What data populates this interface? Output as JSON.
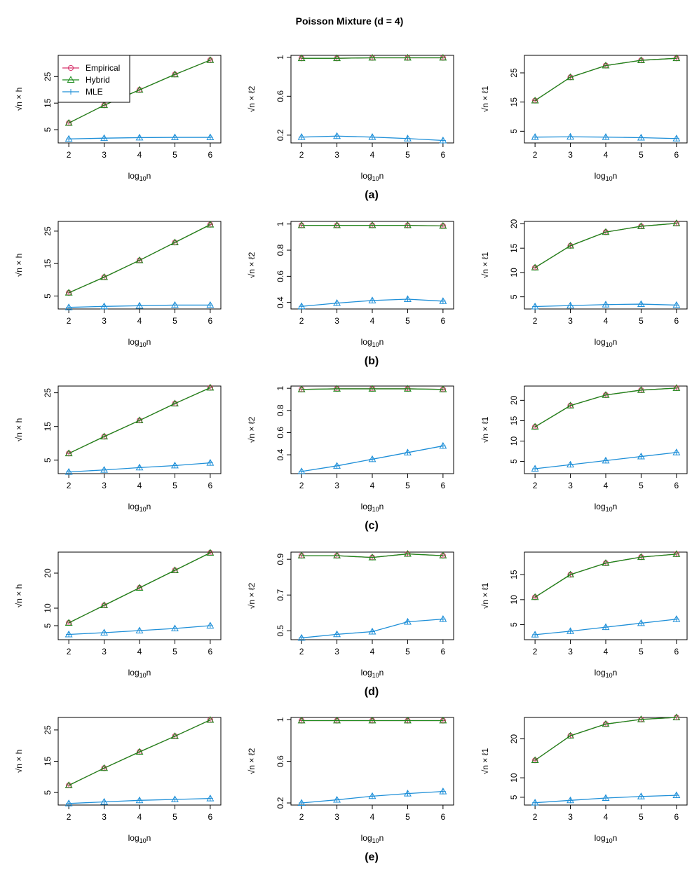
{
  "title": "Poisson Mixture (d = 4)",
  "colors": {
    "empirical": "#d6336c",
    "hybrid": "#1a8a1a",
    "mle": "#1e8fd8",
    "axis": "#000000"
  },
  "legend": [
    {
      "name": "Empirical",
      "symbol": "circle",
      "color": "#d6336c"
    },
    {
      "name": "Hybrid",
      "symbol": "triangle",
      "color": "#1a8a1a"
    },
    {
      "name": "MLE",
      "symbol": "plus",
      "color": "#1e8fd8"
    }
  ],
  "xlabel": "log10n",
  "chart_data": [
    {
      "type": "line",
      "row": "(a)",
      "metric": "h",
      "ylabel": "√n × h",
      "x": [
        2,
        3,
        4,
        5,
        6
      ],
      "ylim": [
        0,
        33
      ],
      "yticks": [
        5,
        15,
        25
      ],
      "series": [
        {
          "name": "Empirical",
          "values": [
            7.5,
            14.2,
            20.0,
            25.8,
            31.2
          ]
        },
        {
          "name": "Hybrid",
          "values": [
            7.5,
            14.2,
            20.0,
            25.8,
            31.2
          ]
        },
        {
          "name": "MLE",
          "values": [
            1.5,
            1.8,
            2.0,
            2.1,
            2.1
          ]
        }
      ]
    },
    {
      "type": "line",
      "row": "(a)",
      "metric": "l2",
      "ylabel": "√n × ℓ2",
      "x": [
        2,
        3,
        4,
        5,
        6
      ],
      "ylim": [
        0.12,
        1.02
      ],
      "yticks": [
        0.2,
        0.6,
        1.0
      ],
      "series": [
        {
          "name": "Empirical",
          "values": [
            0.99,
            0.99,
            0.995,
            0.995,
            0.995
          ]
        },
        {
          "name": "Hybrid",
          "values": [
            0.99,
            0.99,
            0.995,
            0.995,
            0.995
          ]
        },
        {
          "name": "MLE",
          "values": [
            0.18,
            0.19,
            0.18,
            0.165,
            0.145
          ]
        }
      ]
    },
    {
      "type": "line",
      "row": "(a)",
      "metric": "l1",
      "ylabel": "√n × ℓ1",
      "x": [
        2,
        3,
        4,
        5,
        6
      ],
      "ylim": [
        1,
        31
      ],
      "yticks": [
        5,
        15,
        25
      ],
      "series": [
        {
          "name": "Empirical",
          "values": [
            15.5,
            23.5,
            27.5,
            29.3,
            30.0
          ]
        },
        {
          "name": "Hybrid",
          "values": [
            15.5,
            23.5,
            27.5,
            29.3,
            30.0
          ]
        },
        {
          "name": "MLE",
          "values": [
            3.0,
            3.1,
            3.0,
            2.8,
            2.5
          ]
        }
      ]
    },
    {
      "type": "line",
      "row": "(b)",
      "metric": "h",
      "ylabel": "√n × h",
      "x": [
        2,
        3,
        4,
        5,
        6
      ],
      "ylim": [
        1.0,
        28.0
      ],
      "yticks": [
        5,
        15,
        25
      ],
      "series": [
        {
          "name": "Empirical",
          "values": [
            6.0,
            10.8,
            16.0,
            21.5,
            27.0
          ]
        },
        {
          "name": "Hybrid",
          "values": [
            6.0,
            10.8,
            16.0,
            21.5,
            27.0
          ]
        },
        {
          "name": "MLE",
          "values": [
            1.5,
            1.8,
            2.0,
            2.2,
            2.2
          ]
        }
      ]
    },
    {
      "type": "line",
      "row": "(b)",
      "metric": "l2",
      "ylabel": "√n × ℓ2",
      "x": [
        2,
        3,
        4,
        5,
        6
      ],
      "ylim": [
        0.35,
        1.02
      ],
      "yticks": [
        0.4,
        0.6,
        0.8,
        1.0
      ],
      "series": [
        {
          "name": "Empirical",
          "values": [
            0.99,
            0.99,
            0.99,
            0.99,
            0.985
          ]
        },
        {
          "name": "Hybrid",
          "values": [
            0.99,
            0.99,
            0.99,
            0.99,
            0.985
          ]
        },
        {
          "name": "MLE",
          "values": [
            0.37,
            0.395,
            0.415,
            0.425,
            0.41
          ]
        }
      ]
    },
    {
      "type": "line",
      "row": "(b)",
      "metric": "l1",
      "ylabel": "√n × ℓ1",
      "x": [
        2,
        3,
        4,
        5,
        6
      ],
      "ylim": [
        2.5,
        20.5
      ],
      "yticks": [
        5,
        10,
        15,
        20
      ],
      "series": [
        {
          "name": "Empirical",
          "values": [
            11.0,
            15.5,
            18.3,
            19.5,
            20.1
          ]
        },
        {
          "name": "Hybrid",
          "values": [
            11.0,
            15.5,
            18.3,
            19.5,
            20.1
          ]
        },
        {
          "name": "MLE",
          "values": [
            3.0,
            3.2,
            3.4,
            3.5,
            3.3
          ]
        }
      ]
    },
    {
      "type": "line",
      "row": "(c)",
      "metric": "h",
      "ylabel": "√n × h",
      "x": [
        2,
        3,
        4,
        5,
        6
      ],
      "ylim": [
        1.0,
        27.0
      ],
      "yticks": [
        5,
        15,
        25
      ],
      "series": [
        {
          "name": "Empirical",
          "values": [
            7.0,
            12.0,
            16.8,
            21.8,
            26.5
          ]
        },
        {
          "name": "Hybrid",
          "values": [
            7.0,
            12.0,
            16.8,
            21.8,
            26.5
          ]
        },
        {
          "name": "MLE",
          "values": [
            1.5,
            2.1,
            2.8,
            3.4,
            4.2
          ]
        }
      ]
    },
    {
      "type": "line",
      "row": "(c)",
      "metric": "l2",
      "ylabel": "√n × ℓ2",
      "x": [
        2,
        3,
        4,
        5,
        6
      ],
      "ylim": [
        0.23,
        1.02
      ],
      "yticks": [
        0.4,
        0.6,
        0.8,
        1.0
      ],
      "series": [
        {
          "name": "Empirical",
          "values": [
            0.99,
            0.995,
            0.995,
            0.995,
            0.99
          ]
        },
        {
          "name": "Hybrid",
          "values": [
            0.99,
            0.995,
            0.995,
            0.995,
            0.99
          ]
        },
        {
          "name": "MLE",
          "values": [
            0.25,
            0.3,
            0.36,
            0.42,
            0.48
          ]
        }
      ]
    },
    {
      "type": "line",
      "row": "(c)",
      "metric": "l1",
      "ylabel": "√n × ℓ1",
      "x": [
        2,
        3,
        4,
        5,
        6
      ],
      "ylim": [
        2,
        23.5
      ],
      "yticks": [
        5,
        10,
        15,
        20
      ],
      "series": [
        {
          "name": "Empirical",
          "values": [
            13.5,
            18.7,
            21.3,
            22.5,
            23.0
          ]
        },
        {
          "name": "Hybrid",
          "values": [
            13.5,
            18.7,
            21.3,
            22.5,
            23.0
          ]
        },
        {
          "name": "MLE",
          "values": [
            3.2,
            4.2,
            5.2,
            6.2,
            7.2
          ]
        }
      ]
    },
    {
      "type": "line",
      "row": "(d)",
      "metric": "h",
      "ylabel": "√n × h",
      "x": [
        2,
        3,
        4,
        5,
        6
      ],
      "ylim": [
        1.0,
        26.0
      ],
      "yticks": [
        5,
        10,
        20
      ],
      "series": [
        {
          "name": "Empirical",
          "values": [
            5.8,
            10.8,
            15.8,
            20.8,
            25.8
          ]
        },
        {
          "name": "Hybrid",
          "values": [
            5.8,
            10.8,
            15.8,
            20.8,
            25.8
          ]
        },
        {
          "name": "MLE",
          "values": [
            2.5,
            3.0,
            3.6,
            4.2,
            5.0
          ]
        }
      ]
    },
    {
      "type": "line",
      "row": "(d)",
      "metric": "l2",
      "ylabel": "√n × ℓ2",
      "x": [
        2,
        3,
        4,
        5,
        6
      ],
      "ylim": [
        0.45,
        0.94
      ],
      "yticks": [
        0.5,
        0.7,
        0.9
      ],
      "series": [
        {
          "name": "Empirical",
          "values": [
            0.92,
            0.92,
            0.91,
            0.93,
            0.92
          ]
        },
        {
          "name": "Hybrid",
          "values": [
            0.92,
            0.92,
            0.91,
            0.93,
            0.92
          ]
        },
        {
          "name": "MLE",
          "values": [
            0.46,
            0.48,
            0.495,
            0.55,
            0.565
          ]
        }
      ]
    },
    {
      "type": "line",
      "row": "(d)",
      "metric": "l1",
      "ylabel": "√n × ℓ1",
      "x": [
        2,
        3,
        4,
        5,
        6
      ],
      "ylim": [
        2,
        19.5
      ],
      "yticks": [
        5,
        10,
        15
      ],
      "series": [
        {
          "name": "Empirical",
          "values": [
            10.5,
            15.0,
            17.3,
            18.5,
            19.1
          ]
        },
        {
          "name": "Hybrid",
          "values": [
            10.5,
            15.0,
            17.3,
            18.5,
            19.1
          ]
        },
        {
          "name": "MLE",
          "values": [
            3.0,
            3.7,
            4.5,
            5.3,
            6.1
          ]
        }
      ]
    },
    {
      "type": "line",
      "row": "(e)",
      "metric": "h",
      "ylabel": "√n × h",
      "x": [
        2,
        3,
        4,
        5,
        6
      ],
      "ylim": [
        1.0,
        29.0
      ],
      "yticks": [
        5,
        15,
        25
      ],
      "series": [
        {
          "name": "Empirical",
          "values": [
            7.3,
            12.8,
            18.0,
            23.0,
            28.2
          ]
        },
        {
          "name": "Hybrid",
          "values": [
            7.3,
            12.8,
            18.0,
            23.0,
            28.2
          ]
        },
        {
          "name": "MLE",
          "values": [
            1.5,
            2.0,
            2.5,
            2.8,
            3.1
          ]
        }
      ]
    },
    {
      "type": "line",
      "row": "(e)",
      "metric": "l2",
      "ylabel": "√n × ℓ2",
      "x": [
        2,
        3,
        4,
        5,
        6
      ],
      "ylim": [
        0.18,
        1.02
      ],
      "yticks": [
        0.2,
        0.6,
        1.0
      ],
      "series": [
        {
          "name": "Empirical",
          "values": [
            0.99,
            0.99,
            0.99,
            0.99,
            0.99
          ]
        },
        {
          "name": "Hybrid",
          "values": [
            0.99,
            0.99,
            0.99,
            0.99,
            0.99
          ]
        },
        {
          "name": "MLE",
          "values": [
            0.2,
            0.23,
            0.265,
            0.29,
            0.31
          ]
        }
      ]
    },
    {
      "type": "line",
      "row": "(e)",
      "metric": "l1",
      "ylabel": "√n × ℓ1",
      "x": [
        2,
        3,
        4,
        5,
        6
      ],
      "ylim": [
        3,
        25.5
      ],
      "yticks": [
        5,
        10,
        20
      ],
      "series": [
        {
          "name": "Empirical",
          "values": [
            14.5,
            20.8,
            23.8,
            25.0,
            25.5
          ]
        },
        {
          "name": "Hybrid",
          "values": [
            14.5,
            20.8,
            23.8,
            25.0,
            25.5
          ]
        },
        {
          "name": "MLE",
          "values": [
            3.6,
            4.2,
            4.8,
            5.2,
            5.5
          ]
        }
      ]
    }
  ],
  "captions": [
    "(a)",
    "(b)",
    "(c)",
    "(d)",
    "(e)"
  ]
}
